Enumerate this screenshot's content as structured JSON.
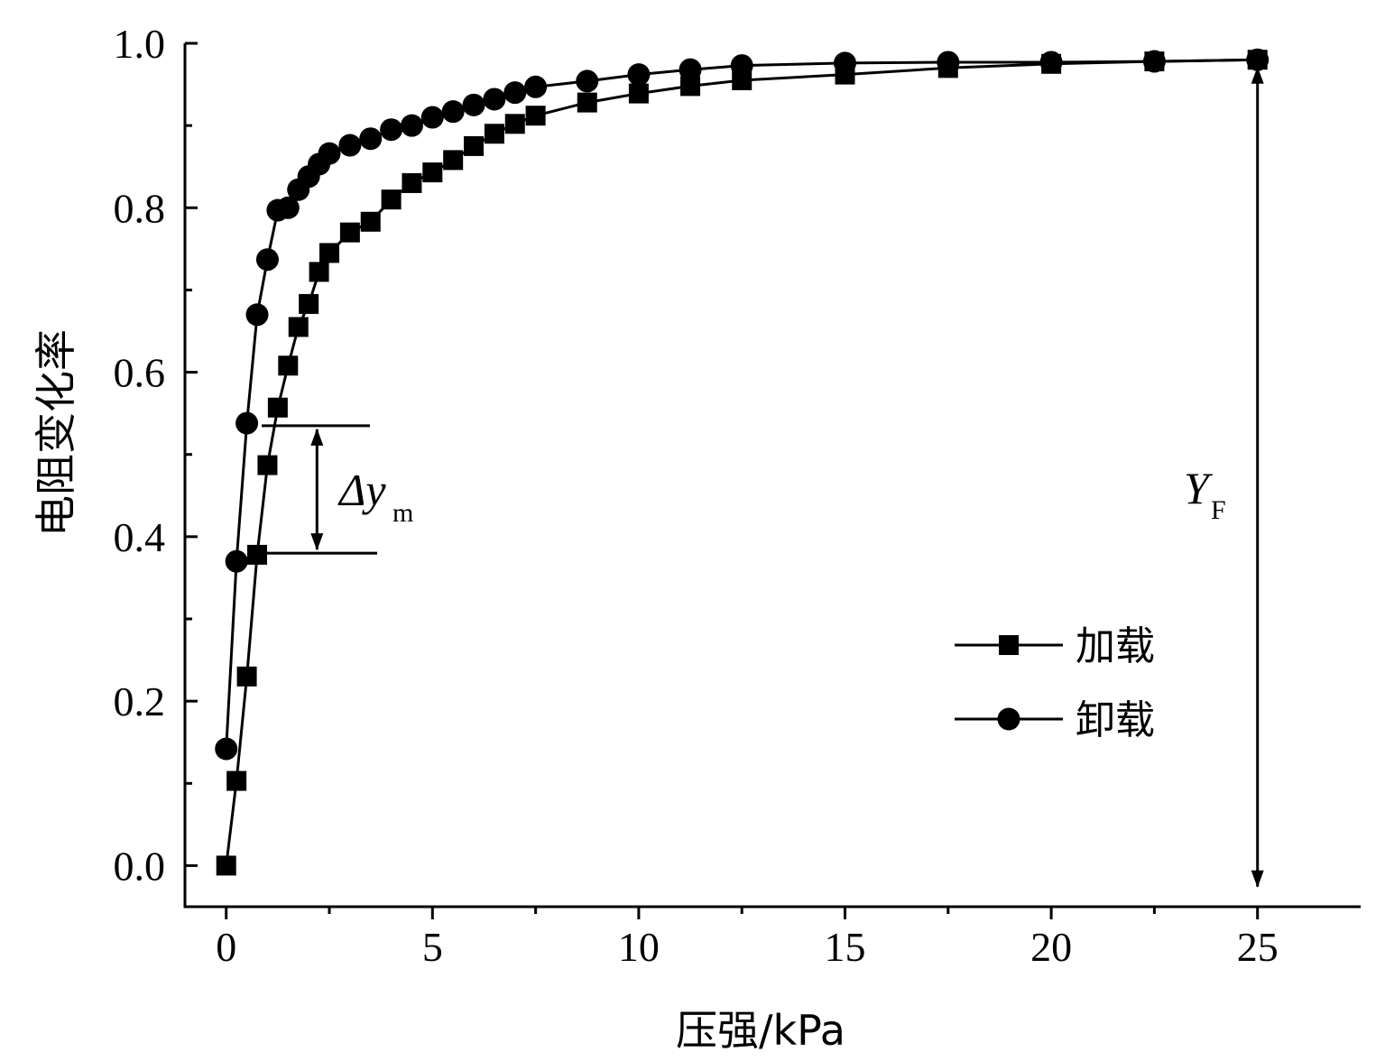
{
  "chart_data": {
    "type": "line",
    "xlabel": "压强/kPa",
    "ylabel": "电阻变化率",
    "xlim": [
      -1,
      27.5
    ],
    "ylim": [
      -0.05,
      1.0
    ],
    "xticks": [
      "0",
      "5",
      "10",
      "15",
      "20",
      "25"
    ],
    "yticks": [
      "0.0",
      "0.2",
      "0.4",
      "0.6",
      "0.8",
      "1.0"
    ],
    "legend_position": "lower-right",
    "series": [
      {
        "name": "加载",
        "marker": "square",
        "x": [
          0,
          0.25,
          0.5,
          0.75,
          1.0,
          1.25,
          1.5,
          1.75,
          2.0,
          2.25,
          2.5,
          3.0,
          3.5,
          4.0,
          4.5,
          5.0,
          5.5,
          6.0,
          6.5,
          7.0,
          7.5,
          8.75,
          10.0,
          11.25,
          12.5,
          15.0,
          17.5,
          20.0,
          22.5,
          25.0
        ],
        "y": [
          0.0,
          0.103,
          0.23,
          0.378,
          0.487,
          0.557,
          0.608,
          0.655,
          0.683,
          0.722,
          0.745,
          0.77,
          0.783,
          0.81,
          0.83,
          0.843,
          0.858,
          0.875,
          0.89,
          0.902,
          0.912,
          0.928,
          0.939,
          0.948,
          0.955,
          0.962,
          0.97,
          0.975,
          0.978,
          0.98
        ]
      },
      {
        "name": "卸载",
        "marker": "circle",
        "x": [
          0,
          0.25,
          0.5,
          0.75,
          1.0,
          1.25,
          1.5,
          1.75,
          2.0,
          2.25,
          2.5,
          3.0,
          3.5,
          4.0,
          4.5,
          5.0,
          5.5,
          6.0,
          6.5,
          7.0,
          7.5,
          8.75,
          10.0,
          11.25,
          12.5,
          15.0,
          17.5,
          20.0,
          22.5,
          25.0
        ],
        "y": [
          0.142,
          0.37,
          0.538,
          0.67,
          0.737,
          0.797,
          0.8,
          0.822,
          0.838,
          0.853,
          0.866,
          0.876,
          0.884,
          0.895,
          0.9,
          0.91,
          0.917,
          0.925,
          0.932,
          0.94,
          0.947,
          0.954,
          0.962,
          0.968,
          0.973,
          0.976,
          0.977,
          0.977,
          0.978,
          0.98
        ]
      }
    ],
    "annotations": {
      "delta_label": "Δy",
      "delta_subscript": "m",
      "delta_x": 2.2,
      "delta_top": 0.535,
      "delta_bottom": 0.38,
      "yf_label": "Y",
      "yf_subscript": "F",
      "yf_x": 25.0,
      "yf_top": 0.975,
      "yf_bottom": -0.03
    }
  }
}
